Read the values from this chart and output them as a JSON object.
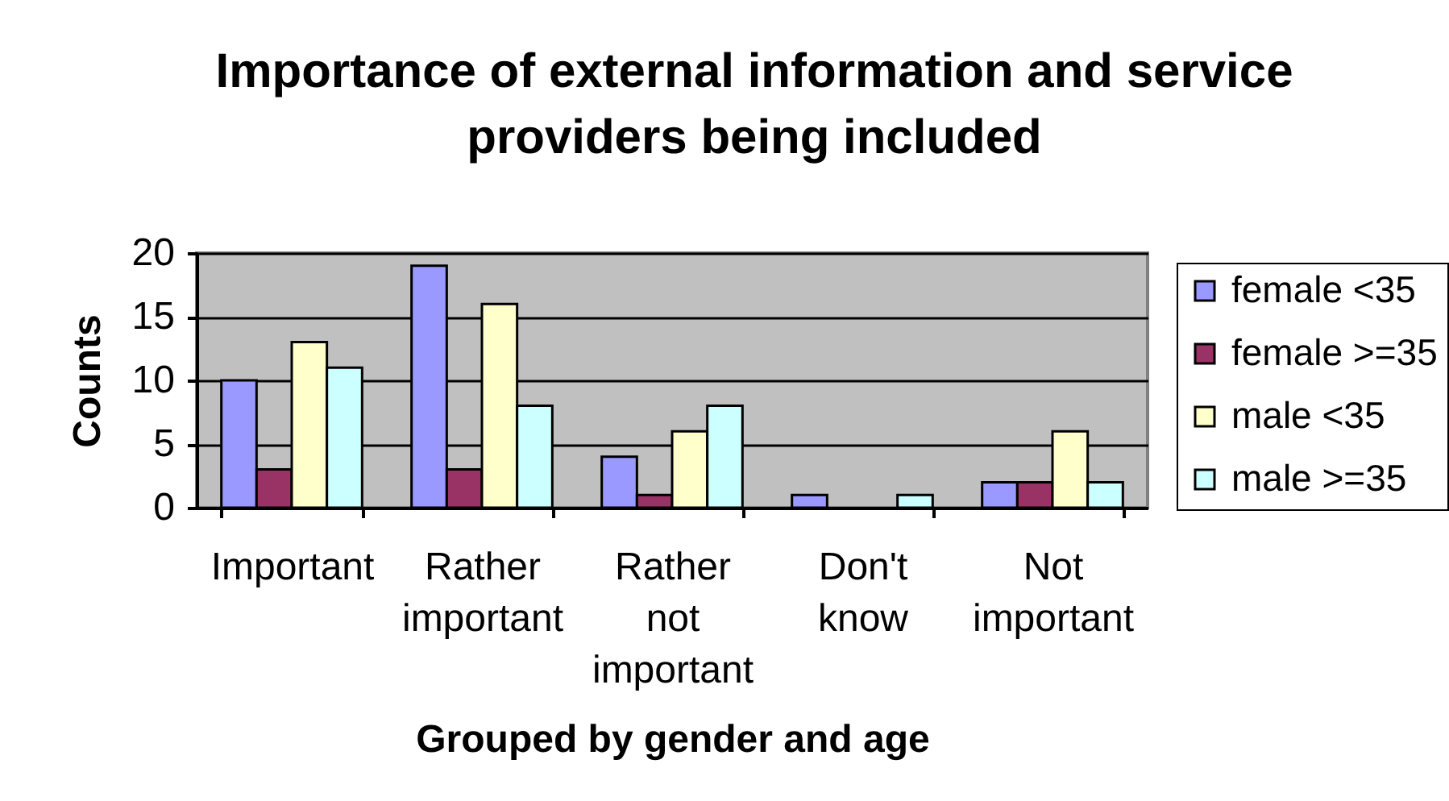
{
  "chart_data": {
    "type": "bar",
    "title": "Importance of external information and service providers being included",
    "xlabel": "Grouped by gender and age",
    "ylabel": "Counts",
    "categories": [
      "Important",
      "Rather important",
      "Rather not important",
      "Don't know",
      "Not important"
    ],
    "series": [
      {
        "name": "female <35",
        "color": "#9999ff",
        "values": [
          10,
          19,
          4,
          1,
          2
        ]
      },
      {
        "name": "female >=35",
        "color": "#993366",
        "values": [
          3,
          3,
          1,
          null,
          2
        ]
      },
      {
        "name": "male <35",
        "color": "#ffffcc",
        "values": [
          13,
          16,
          6,
          null,
          6
        ]
      },
      {
        "name": "male >=35",
        "color": "#ccffff",
        "values": [
          11,
          8,
          8,
          1,
          2
        ]
      }
    ],
    "ylim": [
      0,
      20
    ],
    "yticks": [
      0,
      5,
      10,
      15,
      20
    ],
    "grid": "y",
    "legend": "right"
  }
}
